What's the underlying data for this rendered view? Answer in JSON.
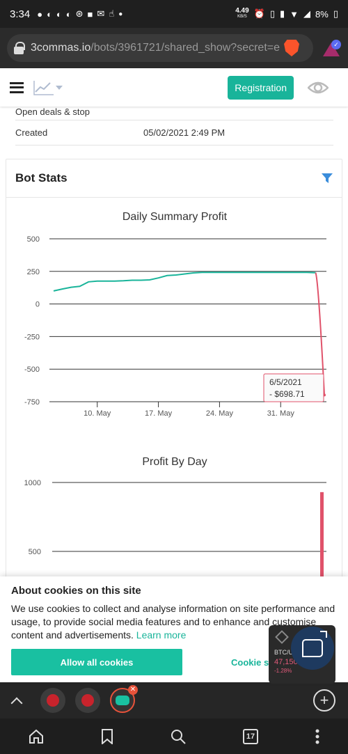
{
  "status_bar": {
    "time": "3:34",
    "speed": "4.49",
    "speed_unit": "KB/S",
    "battery": "8%"
  },
  "browser": {
    "url_host": "3commas.io",
    "url_path": "/bots/3961721/shared_show?secret=e"
  },
  "header": {
    "registration_label": "Registration"
  },
  "info": {
    "row1_label": "Open deals & stop",
    "created_label": "Created",
    "created_value": "05/02/2021 2:49 PM"
  },
  "bot_stats": {
    "title": "Bot Stats"
  },
  "chart_data": [
    {
      "type": "line",
      "title": "Daily Summary Profit",
      "y_ticks": [
        "500",
        "250",
        "0",
        "-250",
        "-500",
        "-750"
      ],
      "x_ticks": [
        "10. May",
        "17. May",
        "24. May",
        "31. May"
      ],
      "ylim": [
        -750,
        500
      ],
      "x": [
        "2021-05-05",
        "2021-05-06",
        "2021-05-07",
        "2021-05-08",
        "2021-05-09",
        "2021-05-10",
        "2021-05-11",
        "2021-05-12",
        "2021-05-13",
        "2021-05-14",
        "2021-05-15",
        "2021-05-16",
        "2021-05-17",
        "2021-05-18",
        "2021-05-19",
        "2021-05-20",
        "2021-05-21",
        "2021-05-22",
        "2021-05-23",
        "2021-05-24",
        "2021-05-25",
        "2021-05-26",
        "2021-05-27",
        "2021-05-28",
        "2021-05-29",
        "2021-05-30",
        "2021-05-31",
        "2021-06-01",
        "2021-06-02",
        "2021-06-03",
        "2021-06-04",
        "2021-06-05"
      ],
      "y": [
        100,
        115,
        128,
        135,
        170,
        175,
        175,
        175,
        178,
        182,
        182,
        185,
        200,
        218,
        222,
        230,
        238,
        242,
        242,
        242,
        242,
        242,
        242,
        242,
        242,
        242,
        242,
        242,
        242,
        242,
        240,
        -698.71
      ],
      "line_color": "#19b49a",
      "drop_color": "#e0526a",
      "tooltip": {
        "date": "6/5/2021",
        "value": "- $698.71"
      }
    },
    {
      "type": "bar",
      "title": "Profit By Day",
      "y_ticks": [
        "1000",
        "500"
      ],
      "bar_color": "#e0526a",
      "last_bar_value": 930
    }
  ],
  "cookie_banner": {
    "title": "About cookies on this site",
    "text": "We use cookies to collect and analyse information on site performance and usage, to provide social media features and to enhance and customise content and advertisements.",
    "learn_more": "Learn more",
    "allow_label": "Allow all cookies",
    "settings_label": "Cookie s"
  },
  "ticker": {
    "pair": "BTC/USDT",
    "price": "47,150.00",
    "change": "-1.28%"
  },
  "nav": {
    "tabs_count": "17"
  }
}
